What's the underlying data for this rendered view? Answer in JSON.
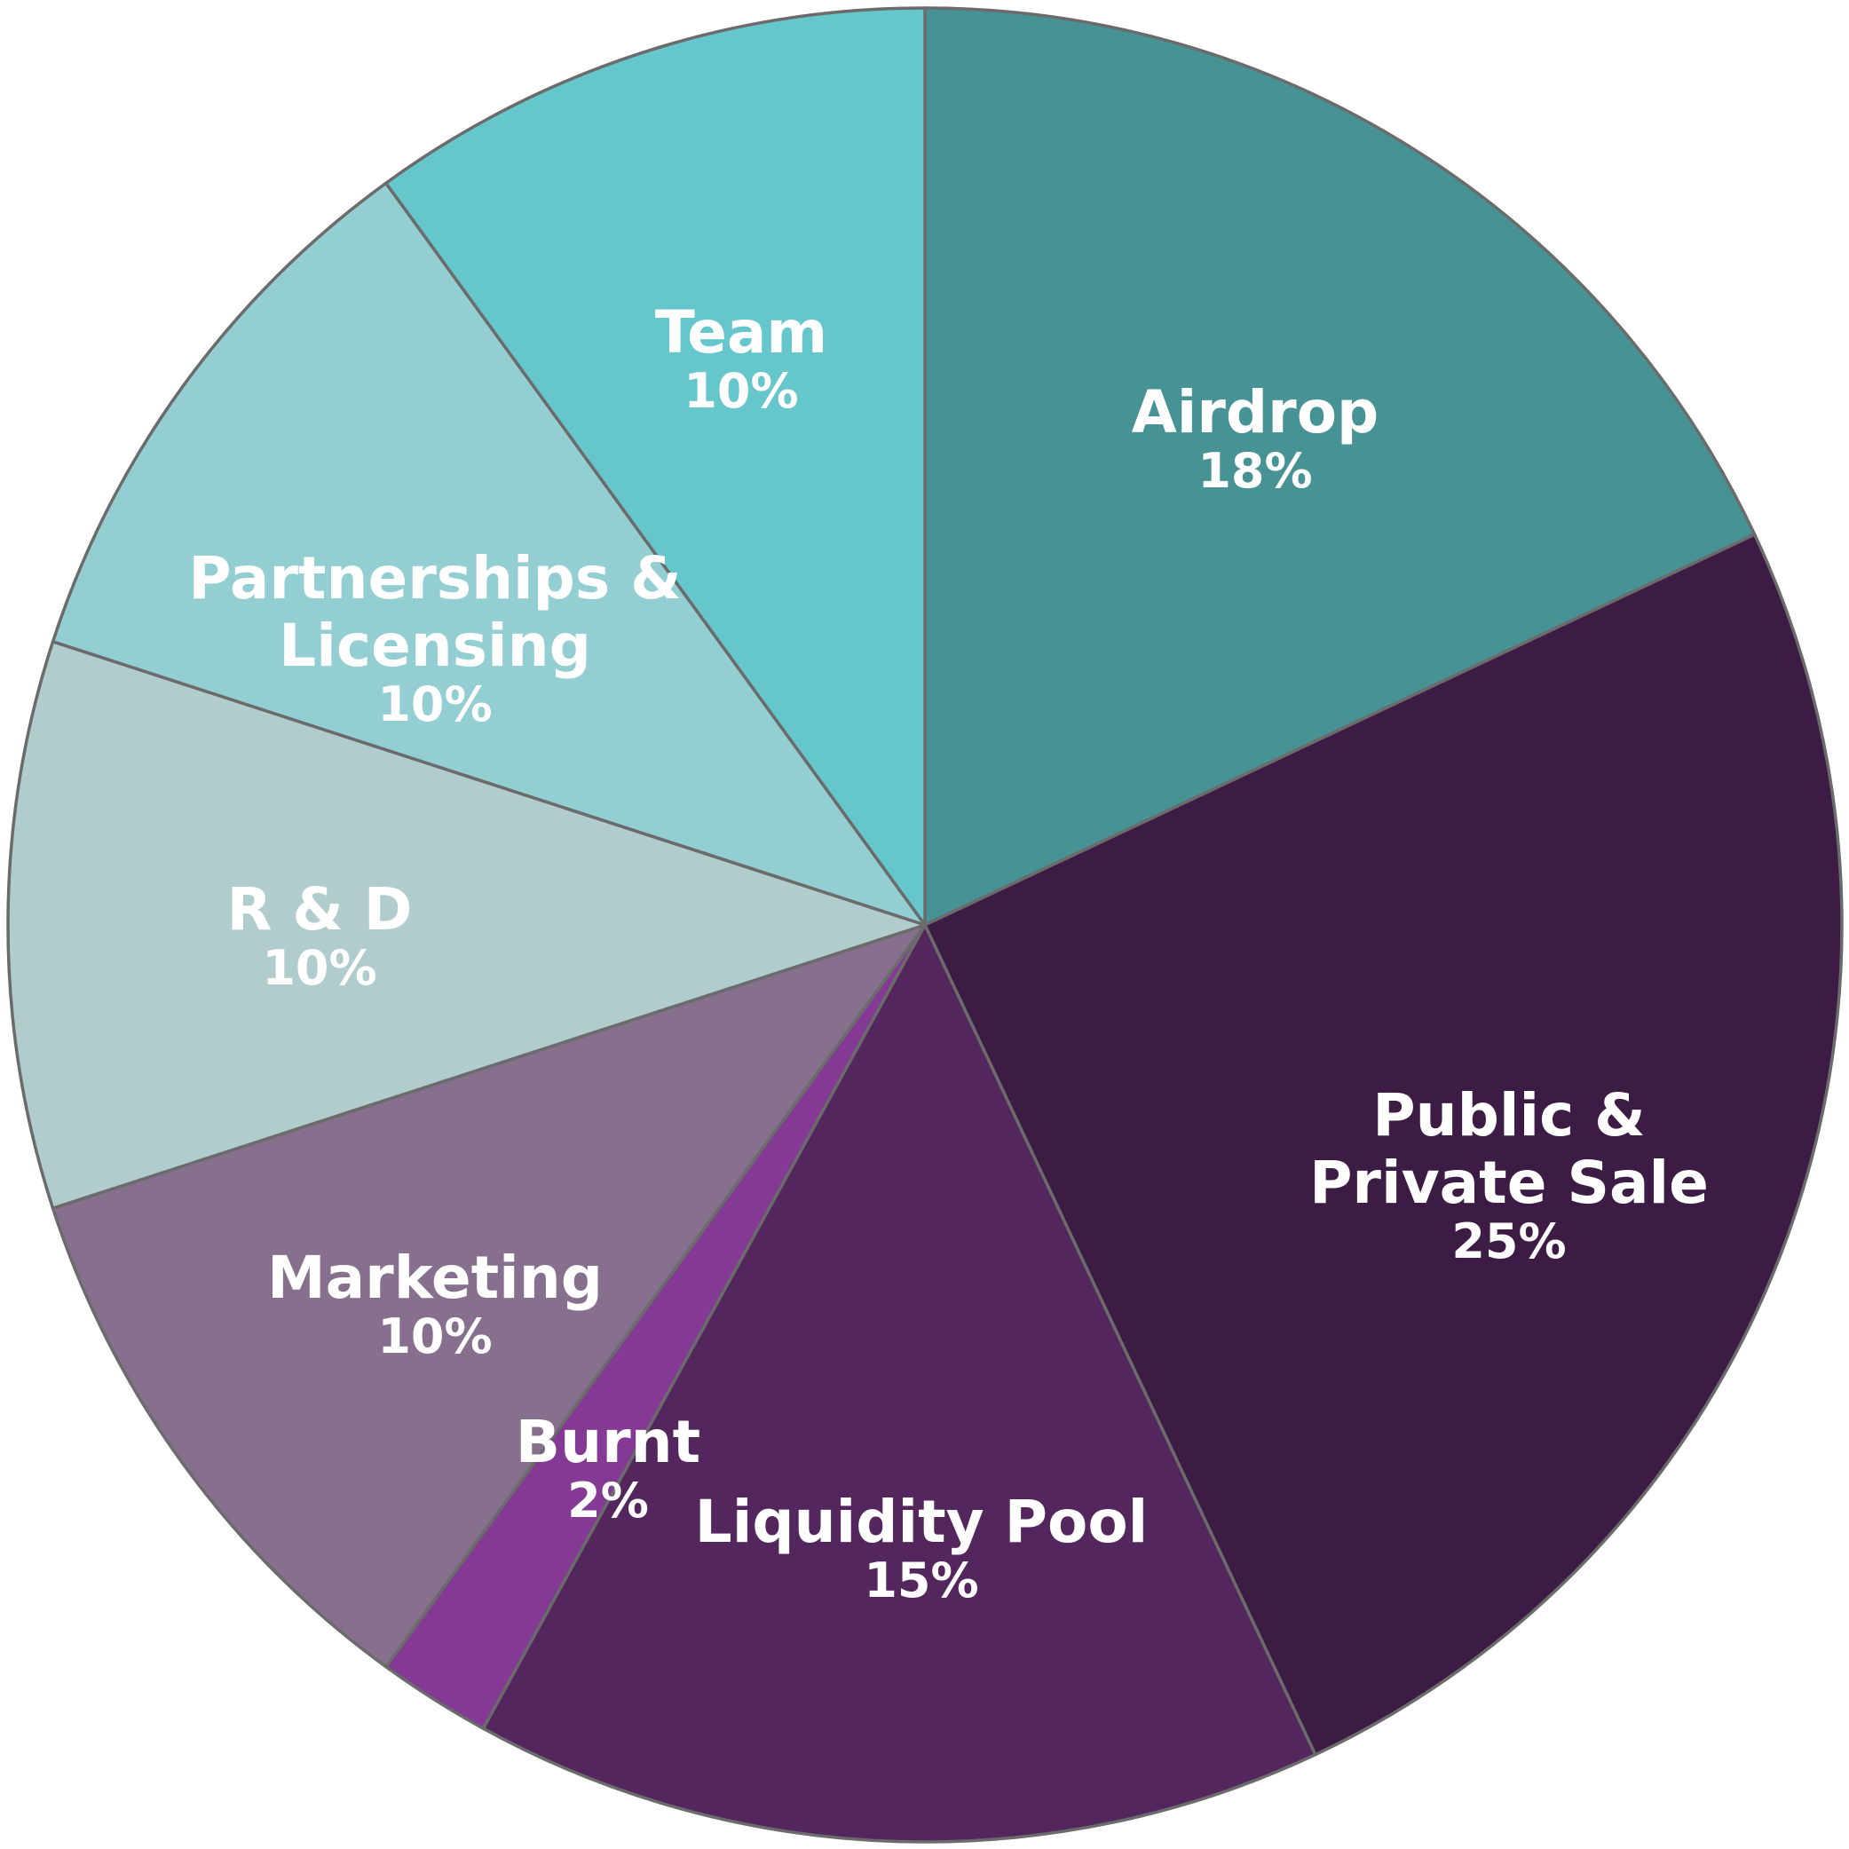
{
  "chart_data": {
    "type": "pie",
    "start_angle": "12 o'clock",
    "direction": "clockwise",
    "slices": [
      {
        "label_lines": [
          "Airdrop"
        ],
        "value": 18,
        "value_label": "18%",
        "color": "#479294"
      },
      {
        "label_lines": [
          "Public &",
          "Private Sale"
        ],
        "value": 25,
        "value_label": "25%",
        "color": "#3c1b45"
      },
      {
        "label_lines": [
          "Liquidity Pool"
        ],
        "value": 15,
        "value_label": "15%",
        "color": "#54265e"
      },
      {
        "label_lines": [
          "Burnt"
        ],
        "value": 2,
        "value_label": "2%",
        "color": "#843995"
      },
      {
        "label_lines": [
          "Marketing"
        ],
        "value": 10,
        "value_label": "10%",
        "color": "#86708e"
      },
      {
        "label_lines": [
          "R & D"
        ],
        "value": 10,
        "value_label": "10%",
        "color": "#b1cccd"
      },
      {
        "label_lines": [
          "Partnerships &",
          "Licensing"
        ],
        "value": 10,
        "value_label": "10%",
        "color": "#93ced3"
      },
      {
        "label_lines": [
          "Team"
        ],
        "value": 10,
        "value_label": "10%",
        "color": "#65c7cc"
      }
    ]
  }
}
